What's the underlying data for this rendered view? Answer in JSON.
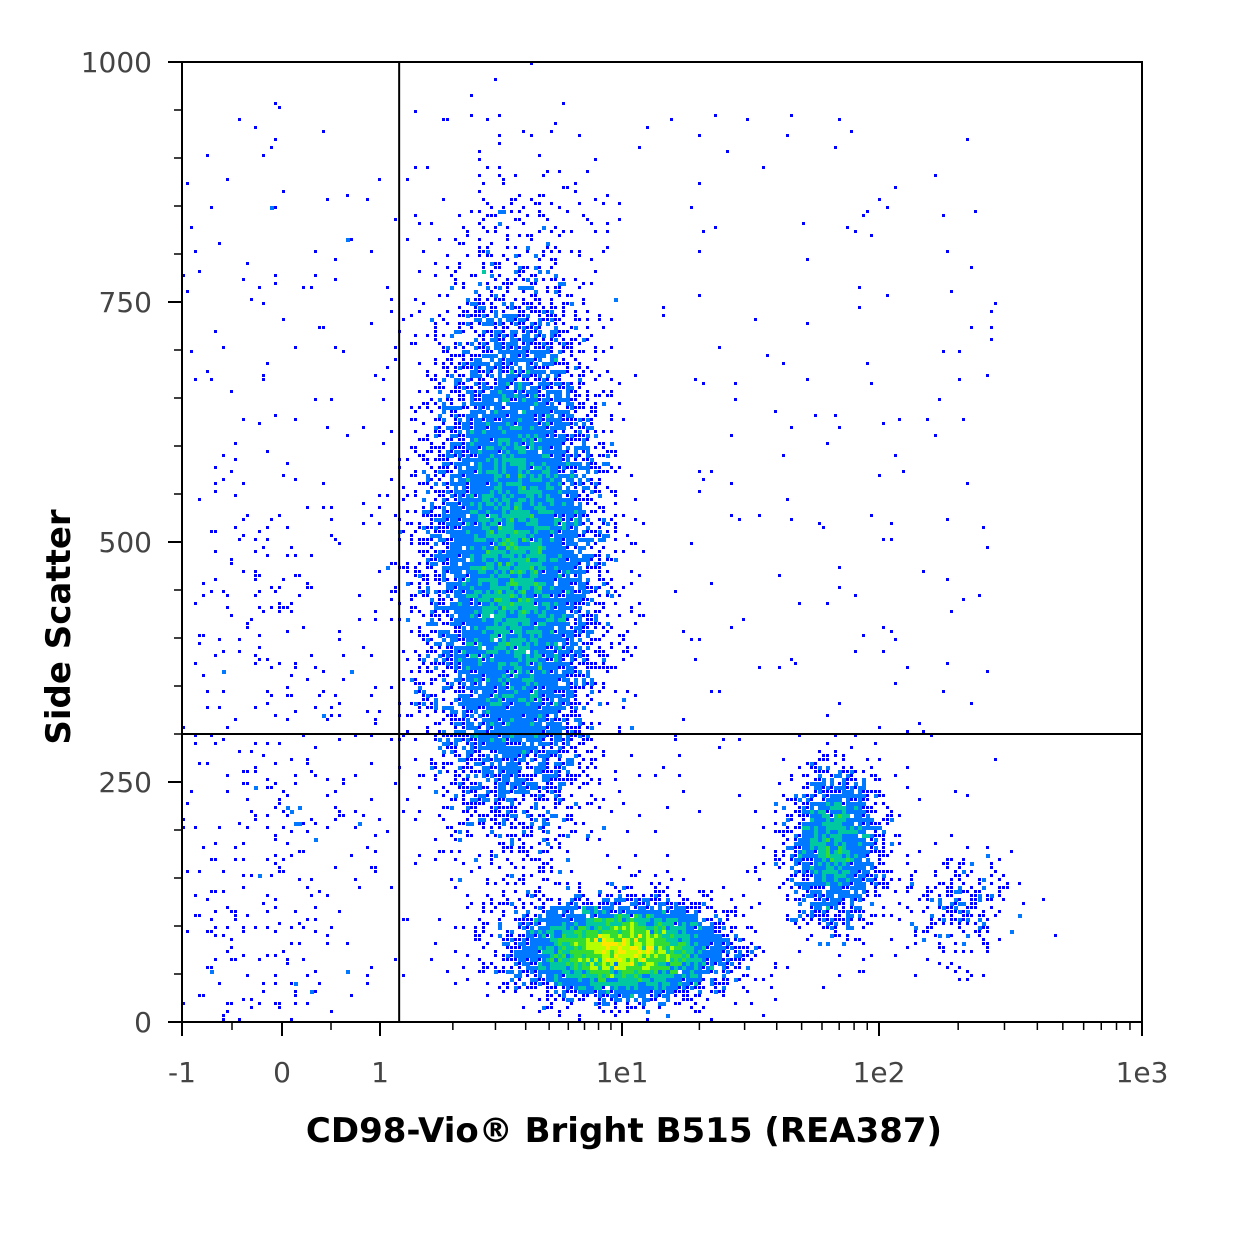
{
  "chart_data": {
    "type": "scatter",
    "style": "flow-cytometry-density-dot-plot",
    "title": "",
    "xlabel": "CD98-Vio® Bright B515 (REA387)",
    "ylabel": "Side Scatter",
    "x_scale": "biexponential",
    "x_ticks": [
      "-1",
      "0",
      "1",
      "1e1",
      "1e2",
      "1e3"
    ],
    "x_tick_values": [
      -1,
      0,
      1,
      10,
      100,
      1000
    ],
    "y_ticks": [
      "0",
      "250",
      "500",
      "750",
      "1000"
    ],
    "y_tick_values": [
      0,
      250,
      500,
      750,
      1000
    ],
    "ylim": [
      0,
      1000
    ],
    "xlim": [
      -1,
      1000
    ],
    "quadrant_gate": {
      "x": 1.2,
      "y": 300
    },
    "density_colors": [
      "#0000ff",
      "#0078ff",
      "#00c8a0",
      "#32dc32",
      "#b4ff00",
      "#ffe600"
    ],
    "populations": [
      {
        "name_desc": "CD98-positive high side scatter",
        "x_center": 3.6,
        "y_center": 480,
        "x_spread": 1.6,
        "y_spread": 130,
        "weight": 0.55
      },
      {
        "name_desc": "CD98-positive low side scatter",
        "x_center": 10,
        "y_center": 75,
        "x_spread": 5,
        "y_spread": 22,
        "weight": 0.33
      },
      {
        "name_desc": "CD98-bright low side scatter",
        "x_center": 68,
        "y_center": 185,
        "x_spread": 14,
        "y_spread": 38,
        "weight": 0.09
      },
      {
        "name_desc": "CD98-high scattered events",
        "x_center": 200,
        "y_center": 120,
        "x_spread": 60,
        "y_spread": 30,
        "weight": 0.01
      },
      {
        "name_desc": "CD98-negative events",
        "x_center": -0.1,
        "y_center": 200,
        "x_spread": 0.6,
        "y_spread": 250,
        "weight": 0.02
      }
    ]
  }
}
